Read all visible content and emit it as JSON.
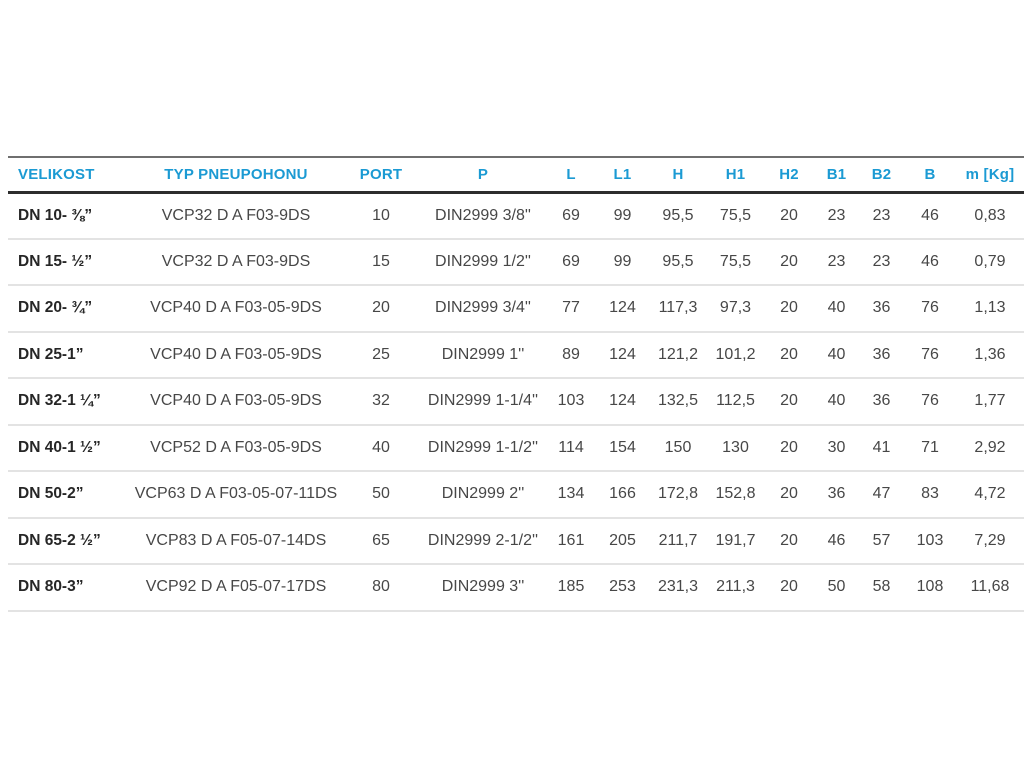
{
  "colors": {
    "header_text": "#1b9ad3",
    "body_text": "#474747",
    "row_label_text": "#262626",
    "header_rule_top": "#6f6f6f",
    "header_rule_bottom": "#2d2d2d",
    "row_divider": "#e3e3e3",
    "background": "#ffffff"
  },
  "table": {
    "columns": [
      {
        "key": "velikost",
        "label": "VELIKOST"
      },
      {
        "key": "typ-pneupohonu",
        "label": "TYP PNEUPOHONU"
      },
      {
        "key": "port",
        "label": "PORT"
      },
      {
        "key": "p",
        "label": "P"
      },
      {
        "key": "l",
        "label": "L"
      },
      {
        "key": "l1",
        "label": "L1"
      },
      {
        "key": "h",
        "label": "H"
      },
      {
        "key": "h1",
        "label": "H1"
      },
      {
        "key": "h2",
        "label": "H2"
      },
      {
        "key": "b1",
        "label": "B1"
      },
      {
        "key": "b2",
        "label": "B2"
      },
      {
        "key": "b",
        "label": "B"
      },
      {
        "key": "m-kg",
        "label": "m [Kg]"
      }
    ],
    "rows": [
      [
        "DN 10- ⅜”",
        "VCP32 D A F03-9DS",
        "10",
        "DIN2999 3/8''",
        "69",
        "99",
        "95,5",
        "75,5",
        "20",
        "23",
        "23",
        "46",
        "0,83"
      ],
      [
        "DN 15- ½”",
        "VCP32 D A F03-9DS",
        "15",
        "DIN2999 1/2''",
        "69",
        "99",
        "95,5",
        "75,5",
        "20",
        "23",
        "23",
        "46",
        "0,79"
      ],
      [
        "DN 20- ¾”",
        "VCP40 D A F03-05-9DS",
        "20",
        "DIN2999 3/4''",
        "77",
        "124",
        "117,3",
        "97,3",
        "20",
        "40",
        "36",
        "76",
        "1,13"
      ],
      [
        "DN 25-1”",
        "VCP40 D A F03-05-9DS",
        "25",
        "DIN2999 1''",
        "89",
        "124",
        "121,2",
        "101,2",
        "20",
        "40",
        "36",
        "76",
        "1,36"
      ],
      [
        "DN 32-1 ¼”",
        "VCP40 D A F03-05-9DS",
        "32",
        "DIN2999 1-1/4''",
        "103",
        "124",
        "132,5",
        "112,5",
        "20",
        "40",
        "36",
        "76",
        "1,77"
      ],
      [
        "DN 40-1 ½”",
        "VCP52 D A F03-05-9DS",
        "40",
        "DIN2999 1-1/2''",
        "114",
        "154",
        "150",
        "130",
        "20",
        "30",
        "41",
        "71",
        "2,92"
      ],
      [
        "DN 50-2”",
        "VCP63 D A F03-05-07-11DS",
        "50",
        "DIN2999 2''",
        "134",
        "166",
        "172,8",
        "152,8",
        "20",
        "36",
        "47",
        "83",
        "4,72"
      ],
      [
        "DN 65-2 ½”",
        "VCP83 D A F05-07-14DS",
        "65",
        "DIN2999 2-1/2''",
        "161",
        "205",
        "211,7",
        "191,7",
        "20",
        "46",
        "57",
        "103",
        "7,29"
      ],
      [
        "DN 80-3”",
        "VCP92 D A F05-07-17DS",
        "80",
        "DIN2999 3''",
        "185",
        "253",
        "231,3",
        "211,3",
        "20",
        "50",
        "58",
        "108",
        "11,68"
      ]
    ]
  }
}
